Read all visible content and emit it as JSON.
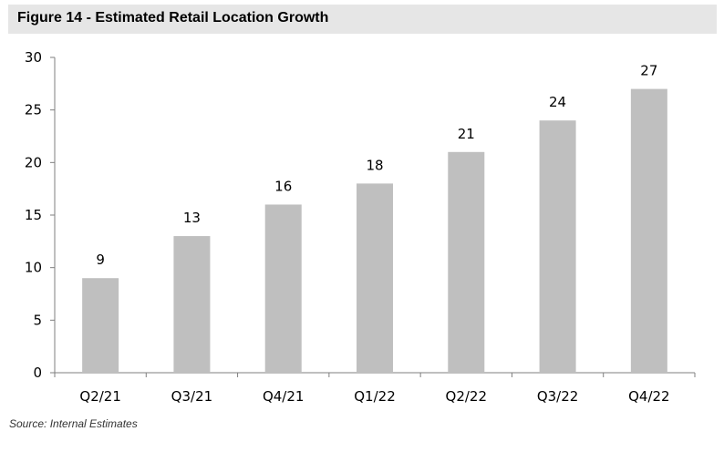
{
  "chart_data": {
    "type": "bar",
    "title": "Figure 14 - Estimated Retail Location Growth",
    "categories": [
      "Q2/21",
      "Q3/21",
      "Q4/21",
      "Q1/22",
      "Q2/22",
      "Q3/22",
      "Q4/22"
    ],
    "values": [
      9,
      13,
      16,
      18,
      21,
      24,
      27
    ],
    "data_labels": [
      "9",
      "13",
      "16",
      "18",
      "21",
      "24",
      "27"
    ],
    "ylim": [
      0,
      30
    ],
    "y_ticks": [
      0,
      5,
      10,
      15,
      20,
      25,
      30
    ],
    "y_tick_labels": [
      "0",
      "5",
      "10",
      "15",
      "20",
      "25",
      "30"
    ],
    "xlabel": "",
    "ylabel": "",
    "grid": false,
    "legend": "none",
    "bar_color": "#bfbfbf",
    "source": "Source: Internal Estimates"
  }
}
